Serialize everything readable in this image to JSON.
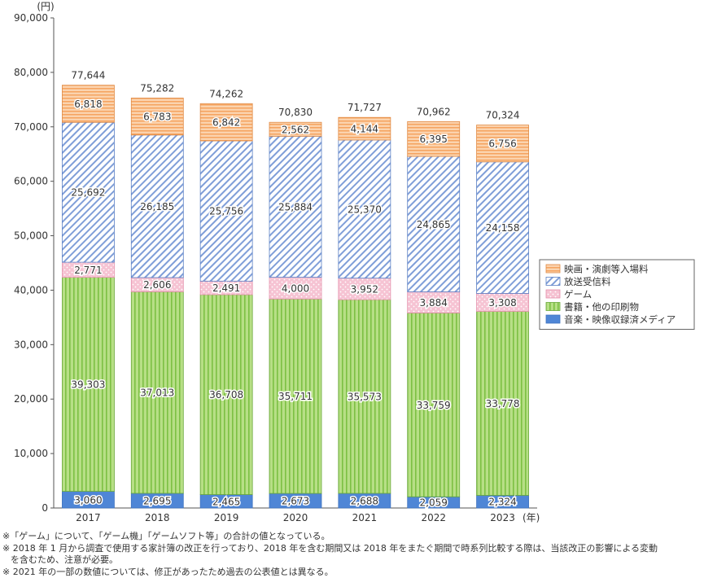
{
  "chart_data": {
    "type": "bar",
    "stacked": true,
    "title": "",
    "xlabel": "",
    "ylabel": "",
    "y_unit": "(円)",
    "x_unit": "(年)",
    "ylim": [
      0,
      90000
    ],
    "yticks": [
      0,
      10000,
      20000,
      30000,
      40000,
      50000,
      60000,
      70000,
      80000,
      90000
    ],
    "ytick_labels": [
      "0",
      "10,000",
      "20,000",
      "30,000",
      "40,000",
      "50,000",
      "60,000",
      "70,000",
      "80,000",
      "90,000"
    ],
    "categories": [
      "2017",
      "2018",
      "2019",
      "2020",
      "2021",
      "2022",
      "2023"
    ],
    "series": [
      {
        "name": "音楽・映像収録済メディア",
        "values": [
          3060,
          2695,
          2465,
          2673,
          2688,
          2059,
          2324
        ],
        "labels": [
          "3,060",
          "2,695",
          "2,465",
          "2,673",
          "2,688",
          "2,059",
          "2,324"
        ],
        "color": "#5b8fd6",
        "pattern": "solid"
      },
      {
        "name": "書籍・他の印刷物",
        "values": [
          39303,
          37013,
          36708,
          35711,
          35573,
          33759,
          33778
        ],
        "labels": [
          "39,303",
          "37,013",
          "36,708",
          "35,711",
          "35,573",
          "33,759",
          "33,778"
        ],
        "color": "#a6d66e",
        "pattern": "vertical-stripes"
      },
      {
        "name": "ゲーム",
        "values": [
          2771,
          2606,
          2491,
          4000,
          3952,
          3884,
          3308
        ],
        "labels": [
          "2,771",
          "2,606",
          "2,491",
          "4,000",
          "3,952",
          "3,884",
          "3,308"
        ],
        "color": "#f2a7bf",
        "pattern": "dots"
      },
      {
        "name": "放送受信料",
        "values": [
          25692,
          26185,
          25756,
          25884,
          25370,
          24865,
          24158
        ],
        "labels": [
          "25,692",
          "26,185",
          "25,756",
          "25,884",
          "25,370",
          "24,865",
          "24,158"
        ],
        "color": "#6f8fd4",
        "pattern": "diagonal-stripes"
      },
      {
        "name": "映画・演劇等入場料",
        "values": [
          6818,
          6783,
          6842,
          2562,
          4144,
          6395,
          6756
        ],
        "labels": [
          "6,818",
          "6,783",
          "6,842",
          "2,562",
          "4,144",
          "6,395",
          "6,756"
        ],
        "color": "#f5a35f",
        "pattern": "horizontal-stripes"
      }
    ],
    "totals": [
      77644,
      75282,
      74262,
      70830,
      71727,
      70962,
      70324
    ],
    "total_labels": [
      "77,644",
      "75,282",
      "74,262",
      "70,830",
      "71,727",
      "70,962",
      "70,324"
    ],
    "legend_order": [
      "映画・演劇等入場料",
      "放送受信料",
      "ゲーム",
      "書籍・他の印刷物",
      "音楽・映像収録済メディア"
    ],
    "legend_position": "right",
    "grid": false
  },
  "notes": [
    "※「ゲーム」について、「ゲーム機」「ゲームソフト等」の合計の値となっている。",
    "※ 2018 年 1 月から調査で使用する家計簿の改正を行っており、2018 年を含む期間又は 2018 年をまたぐ期間で時系列比較する際は、当該改正の影響による変動",
    "を含むため、注意が必要。",
    "※ 2021 年の一部の数値については、修正があったため過去の公表値とは異なる。"
  ]
}
